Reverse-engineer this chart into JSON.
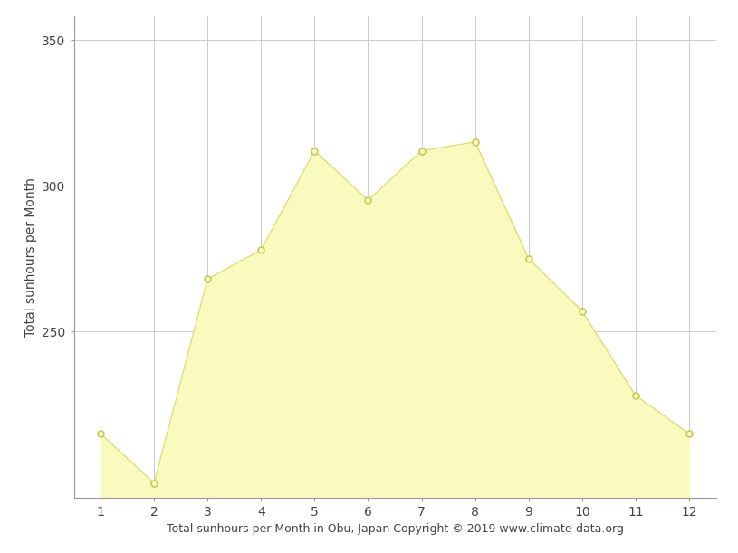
{
  "months": [
    1,
    2,
    3,
    4,
    5,
    6,
    7,
    8,
    9,
    10,
    11,
    12
  ],
  "sunhours": [
    215,
    198,
    268,
    278,
    312,
    295,
    312,
    315,
    275,
    257,
    228,
    215
  ],
  "fill_color": "#FAFABE",
  "line_color": "#D8D870",
  "marker_facecolor": "#FAFABE",
  "marker_edgecolor": "#C8C860",
  "background_color": "#ffffff",
  "grid_color": "#cccccc",
  "ylabel": "Total sunhours per Month",
  "xlabel": "Total sunhours per Month in Obu, Japan Copyright © 2019 www.climate-data.org",
  "ylim_min": 193,
  "ylim_max": 358,
  "yticks": [
    250,
    300,
    350
  ],
  "ytick_top": 350,
  "xticks": [
    1,
    2,
    3,
    4,
    5,
    6,
    7,
    8,
    9,
    10,
    11,
    12
  ],
  "ylabel_fontsize": 10,
  "xlabel_fontsize": 9,
  "tick_fontsize": 10
}
